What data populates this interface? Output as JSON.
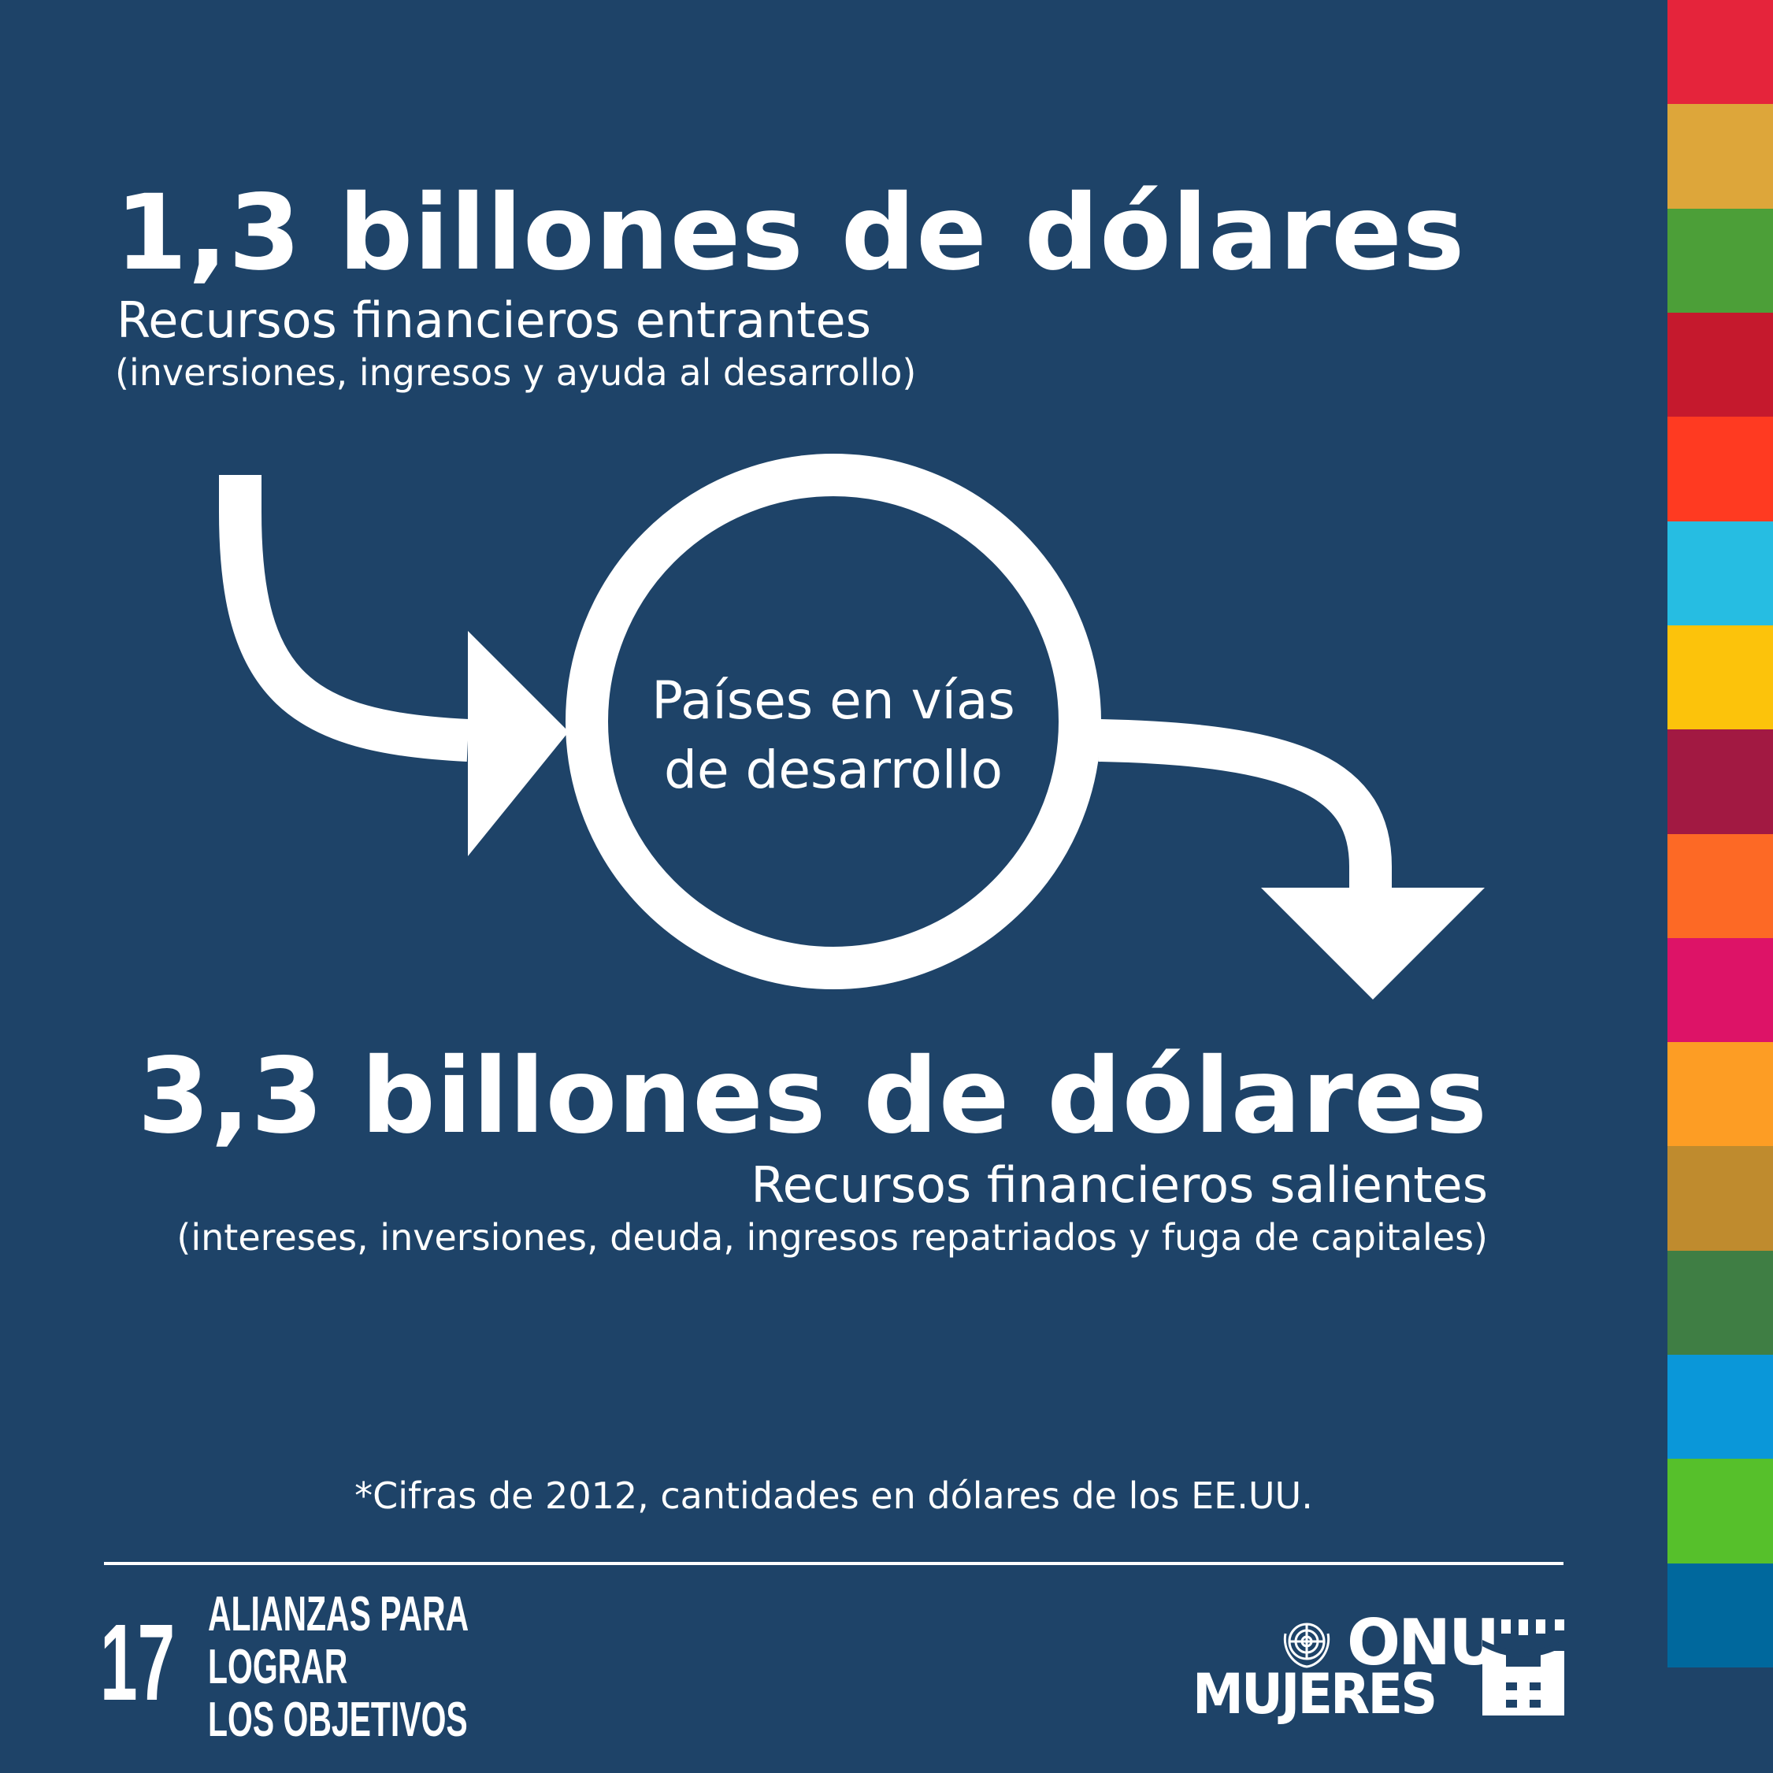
{
  "top": {
    "amount": "1,3 billones de dólares",
    "label": "Recursos financieros entrantes",
    "detail": "(inversiones, ingresos y ayuda al desarrollo)"
  },
  "circle": {
    "line1": "Países en vías",
    "line2": "de desarrollo"
  },
  "bottom": {
    "amount": "3,3 billones de dólares",
    "label": "Recursos financieros salientes",
    "detail": "(intereses, inversiones, deuda, ingresos repatriados y fuga de capitales)"
  },
  "footnote": "*Cifras de 2012, cantidades en dólares de los EE.UU.",
  "goal": {
    "number": "17",
    "lines": [
      "ALIANZAS PARA",
      "LOGRAR",
      "LOS OBJETIVOS"
    ]
  },
  "logo": {
    "line1": "ONU",
    "line2": "MUJERES"
  },
  "colors": {
    "background": "#1e4368",
    "sdg_stripes": [
      "#e5243b",
      "#dda63a",
      "#4c9f38",
      "#c5192d",
      "#ff3a21",
      "#26bde2",
      "#fcc30b",
      "#a21942",
      "#fd6925",
      "#dd1367",
      "#fd9d24",
      "#bf8b2e",
      "#3f7e44",
      "#0a97d9",
      "#56c02b",
      "#00689d"
    ]
  }
}
